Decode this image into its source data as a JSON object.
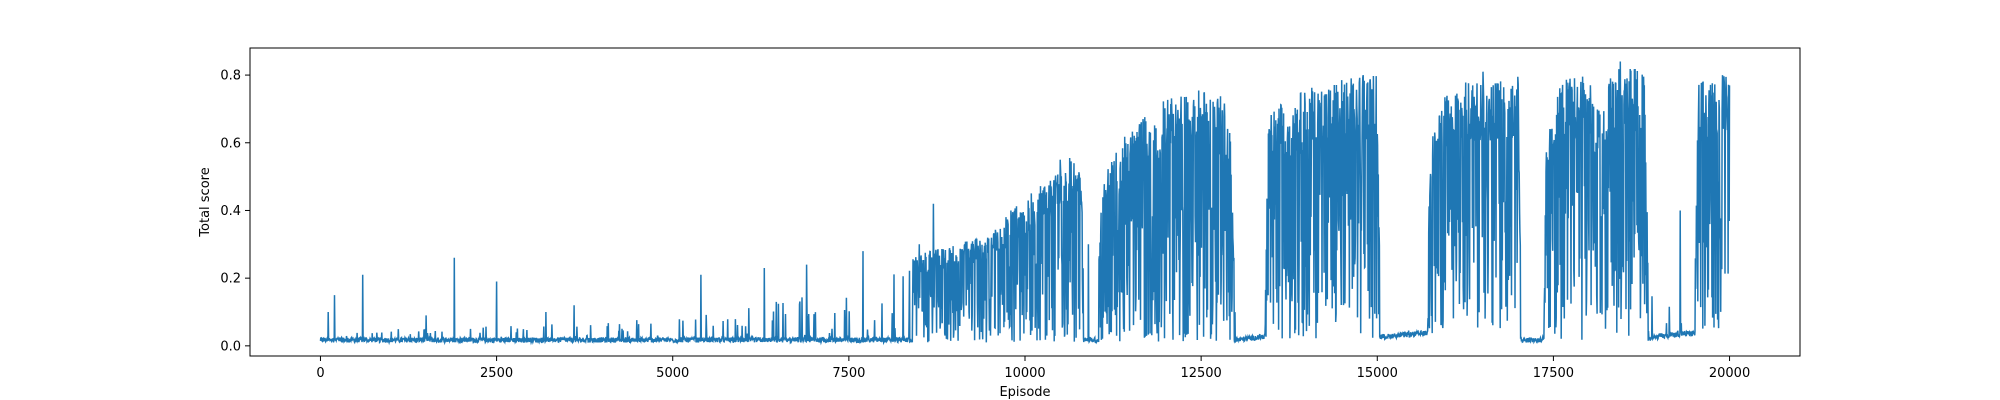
{
  "chart_data": {
    "type": "line",
    "title": "",
    "xlabel": "Episode",
    "ylabel": "Total score",
    "xlim": [
      -1000,
      21000
    ],
    "ylim": [
      -0.03,
      0.88
    ],
    "xticks": [
      0,
      2500,
      5000,
      7500,
      10000,
      12500,
      15000,
      17500,
      20000
    ],
    "xtick_labels": [
      "0",
      "2500",
      "5000",
      "7500",
      "10000",
      "12500",
      "15000",
      "17500",
      "20000"
    ],
    "yticks": [
      0.0,
      0.2,
      0.4,
      0.6,
      0.8
    ],
    "ytick_labels": [
      "0.0",
      "0.2",
      "0.4",
      "0.6",
      "0.8"
    ],
    "grid": false,
    "series": [
      {
        "color": "#1f77b4",
        "episodes": 20000,
        "baseline": [
          [
            0,
            0.01
          ],
          [
            5000,
            0.01
          ],
          [
            10000,
            0.01
          ],
          [
            13000,
            0.01
          ],
          [
            13400,
            0.02
          ],
          [
            15000,
            0.02
          ],
          [
            15100,
            0.02
          ],
          [
            15700,
            0.03
          ],
          [
            16000,
            0.05
          ],
          [
            17000,
            0.04
          ],
          [
            17050,
            0.01
          ],
          [
            17300,
            0.01
          ],
          [
            17400,
            0.01
          ],
          [
            17700,
            0.01
          ],
          [
            18800,
            0.01
          ],
          [
            19000,
            0.02
          ],
          [
            19500,
            0.03
          ],
          [
            20000,
            0.06
          ]
        ],
        "upper_envelope": [
          [
            0,
            0.03
          ],
          [
            1000,
            0.05
          ],
          [
            2500,
            0.06
          ],
          [
            4000,
            0.07
          ],
          [
            5000,
            0.09
          ],
          [
            6000,
            0.11
          ],
          [
            7000,
            0.16
          ],
          [
            7500,
            0.19
          ],
          [
            8000,
            0.22
          ],
          [
            8500,
            0.27
          ],
          [
            9000,
            0.3
          ],
          [
            9500,
            0.33
          ],
          [
            10000,
            0.44
          ],
          [
            10400,
            0.5
          ],
          [
            10600,
            0.56
          ],
          [
            10800,
            0.55
          ],
          [
            10850,
            0.05
          ],
          [
            11000,
            0.05
          ],
          [
            11100,
            0.5
          ],
          [
            11500,
            0.65
          ],
          [
            12000,
            0.73
          ],
          [
            12500,
            0.76
          ],
          [
            12900,
            0.73
          ],
          [
            13000,
            0.03
          ],
          [
            13400,
            0.03
          ],
          [
            13450,
            0.63
          ],
          [
            13500,
            0.7
          ],
          [
            14000,
            0.76
          ],
          [
            14500,
            0.79
          ],
          [
            15000,
            0.81
          ],
          [
            15050,
            0.03
          ],
          [
            15700,
            0.07
          ],
          [
            15750,
            0.6
          ],
          [
            16000,
            0.77
          ],
          [
            16500,
            0.79
          ],
          [
            17000,
            0.8
          ],
          [
            17050,
            0.03
          ],
          [
            17350,
            0.05
          ],
          [
            17400,
            0.6
          ],
          [
            17600,
            0.79
          ],
          [
            18000,
            0.8
          ],
          [
            18200,
            0.7
          ],
          [
            18300,
            0.82
          ],
          [
            18500,
            0.83
          ],
          [
            18800,
            0.82
          ],
          [
            18850,
            0.15
          ],
          [
            19000,
            0.25
          ],
          [
            19200,
            0.1
          ],
          [
            19500,
            0.08
          ],
          [
            19550,
            0.78
          ],
          [
            20000,
            0.8
          ]
        ],
        "spikes": [
          [
            110,
            0.1
          ],
          [
            200,
            0.15
          ],
          [
            600,
            0.21
          ],
          [
            1500,
            0.09
          ],
          [
            1900,
            0.26
          ],
          [
            2500,
            0.19
          ],
          [
            3200,
            0.1
          ],
          [
            3600,
            0.12
          ],
          [
            5400,
            0.21
          ],
          [
            6300,
            0.23
          ],
          [
            6900,
            0.24
          ],
          [
            7700,
            0.28
          ],
          [
            8500,
            0.3
          ],
          [
            8700,
            0.42
          ],
          [
            9800,
            0.4
          ],
          [
            10500,
            0.55
          ],
          [
            10900,
            0.3
          ],
          [
            14800,
            0.8
          ],
          [
            16500,
            0.81
          ],
          [
            18450,
            0.84
          ],
          [
            19300,
            0.4
          ],
          [
            19900,
            0.8
          ]
        ]
      }
    ]
  }
}
